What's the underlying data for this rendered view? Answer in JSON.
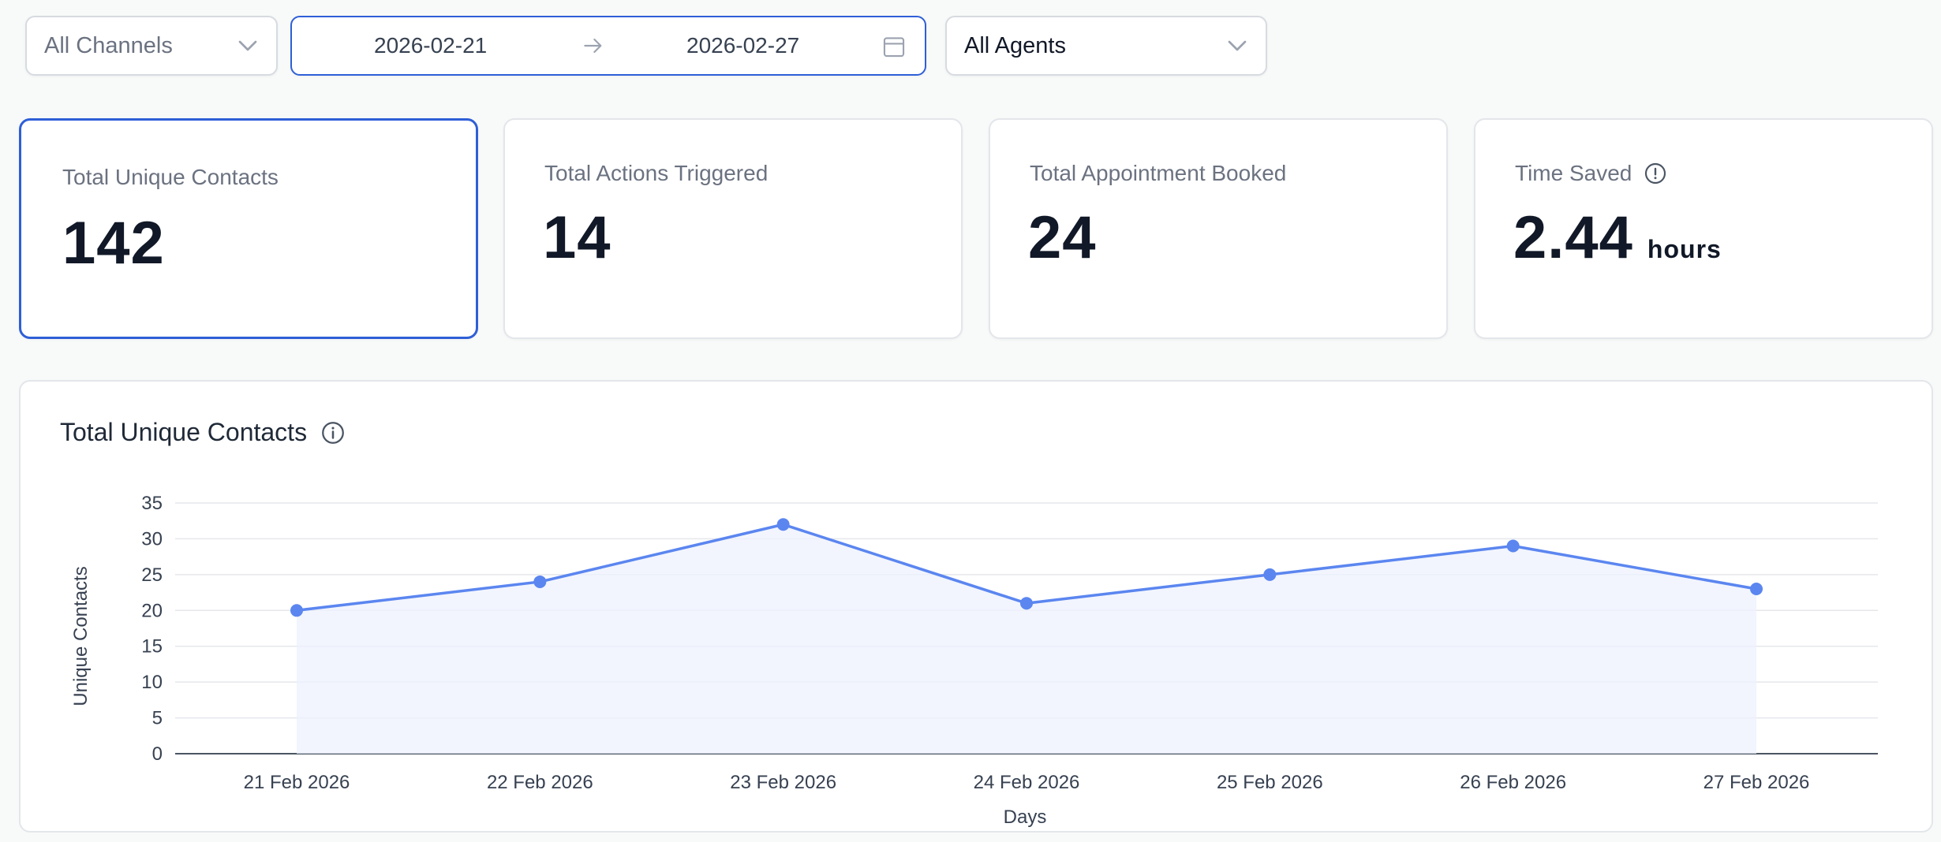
{
  "filters": {
    "channels": "All Channels",
    "date_start": "2026-02-21",
    "date_end": "2026-02-27",
    "agents": "All Agents"
  },
  "cards": {
    "contacts": {
      "title": "Total Unique Contacts",
      "value": "142"
    },
    "actions": {
      "title": "Total Actions Triggered",
      "value": "14"
    },
    "appointments": {
      "title": "Total Appointment Booked",
      "value": "24"
    },
    "time_saved": {
      "title": "Time Saved",
      "value": "2.44",
      "unit": "hours"
    }
  },
  "chart_panel": {
    "title": "Total Unique Contacts"
  },
  "colors": {
    "accent": "#2f5fd7",
    "line": "#5b86f0",
    "fill": "#eef2fd"
  },
  "chart_data": {
    "type": "line",
    "title": "Total Unique Contacts",
    "xlabel": "Days",
    "ylabel": "Unique Contacts",
    "categories": [
      "21 Feb 2026",
      "22 Feb 2026",
      "23 Feb 2026",
      "24 Feb 2026",
      "25 Feb 2026",
      "26 Feb 2026",
      "27 Feb 2026"
    ],
    "values": [
      20,
      24,
      32,
      21,
      25,
      29,
      23
    ],
    "ylim": [
      0,
      35
    ],
    "yticks": [
      0,
      5,
      10,
      15,
      20,
      25,
      30,
      35
    ],
    "grid": true,
    "area_fill": true
  }
}
